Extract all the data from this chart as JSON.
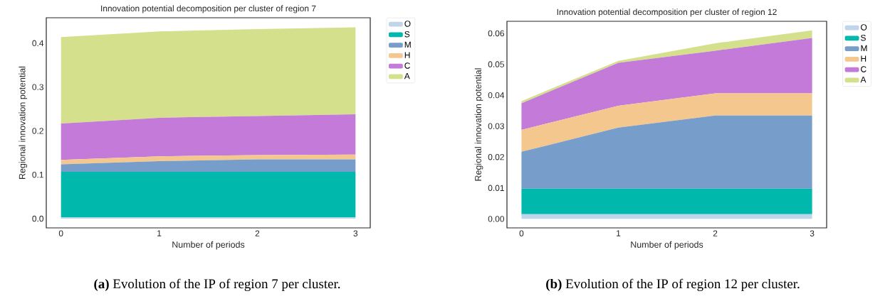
{
  "chart_data": [
    {
      "type": "area",
      "stacked": true,
      "title": "Innovation potential decomposition per cluster of region 7",
      "xlabel": "Number of periods",
      "ylabel": "Regional innovation potential",
      "x": [
        0,
        1,
        2,
        3
      ],
      "xlim": [
        -0.15,
        3.15
      ],
      "xticks": [
        0,
        1,
        2,
        3
      ],
      "ylim": [
        -0.021,
        0.458
      ],
      "yticks": [
        {
          "value": 0,
          "label": "0.0"
        },
        0.1,
        0.2,
        0.3,
        0.4
      ],
      "legend": "top right",
      "grid": false,
      "series": [
        {
          "name": "O",
          "color": "#c0d4ea",
          "values": [
            0.003,
            0.003,
            0.003,
            0.003
          ]
        },
        {
          "name": "S",
          "color": "#00b8ac",
          "values": [
            0.104,
            0.104,
            0.104,
            0.104
          ]
        },
        {
          "name": "M",
          "color": "#779dca",
          "values": [
            0.017,
            0.024,
            0.028,
            0.028
          ]
        },
        {
          "name": "H",
          "color": "#f4c78e",
          "values": [
            0.01,
            0.011,
            0.01,
            0.011
          ]
        },
        {
          "name": "C",
          "color": "#c37ad8",
          "values": [
            0.083,
            0.088,
            0.089,
            0.092
          ]
        },
        {
          "name": "A",
          "color": "#d5e08d",
          "values": [
            0.197,
            0.197,
            0.198,
            0.198
          ]
        }
      ],
      "annotations": [
        "**(a)** Evolution of the IP of region 7 per cluster."
      ]
    },
    {
      "type": "area",
      "stacked": true,
      "title": "Innovation potential decomposition per cluster of region 12",
      "xlabel": "Number of periods",
      "ylabel": "Regional innovation potential",
      "x": [
        0,
        1,
        2,
        3
      ],
      "xlim": [
        -0.15,
        3.15
      ],
      "xticks": [
        0,
        1,
        2,
        3
      ],
      "ylim": [
        -0.0029,
        0.0639
      ],
      "yticks": [
        {
          "value": 0,
          "label": "0.00"
        },
        {
          "value": 0.01,
          "label": "0.01"
        },
        {
          "value": 0.02,
          "label": "0.02"
        },
        {
          "value": 0.03,
          "label": "0.03"
        },
        {
          "value": 0.04,
          "label": "0.04"
        },
        {
          "value": 0.05,
          "label": "0.05"
        },
        {
          "value": 0.06,
          "label": "0.06"
        }
      ],
      "legend": "top right",
      "grid": false,
      "series": [
        {
          "name": "O",
          "color": "#c0d4ea",
          "values": [
            0.0015,
            0.0015,
            0.0015,
            0.0015
          ]
        },
        {
          "name": "S",
          "color": "#00b8ac",
          "values": [
            0.0083,
            0.0083,
            0.0083,
            0.0083
          ]
        },
        {
          "name": "M",
          "color": "#779dca",
          "values": [
            0.0119,
            0.0197,
            0.0236,
            0.0236
          ]
        },
        {
          "name": "H",
          "color": "#f4c78e",
          "values": [
            0.0071,
            0.0071,
            0.0072,
            0.0072
          ]
        },
        {
          "name": "C",
          "color": "#c37ad8",
          "values": [
            0.0086,
            0.0139,
            0.0138,
            0.0179
          ]
        },
        {
          "name": "A",
          "color": "#d5e08d",
          "values": [
            0.0007,
            0.0006,
            0.0024,
            0.0025
          ]
        }
      ],
      "annotations": [
        "**(b)** Evolution of the IP of region 12 per cluster."
      ]
    }
  ]
}
